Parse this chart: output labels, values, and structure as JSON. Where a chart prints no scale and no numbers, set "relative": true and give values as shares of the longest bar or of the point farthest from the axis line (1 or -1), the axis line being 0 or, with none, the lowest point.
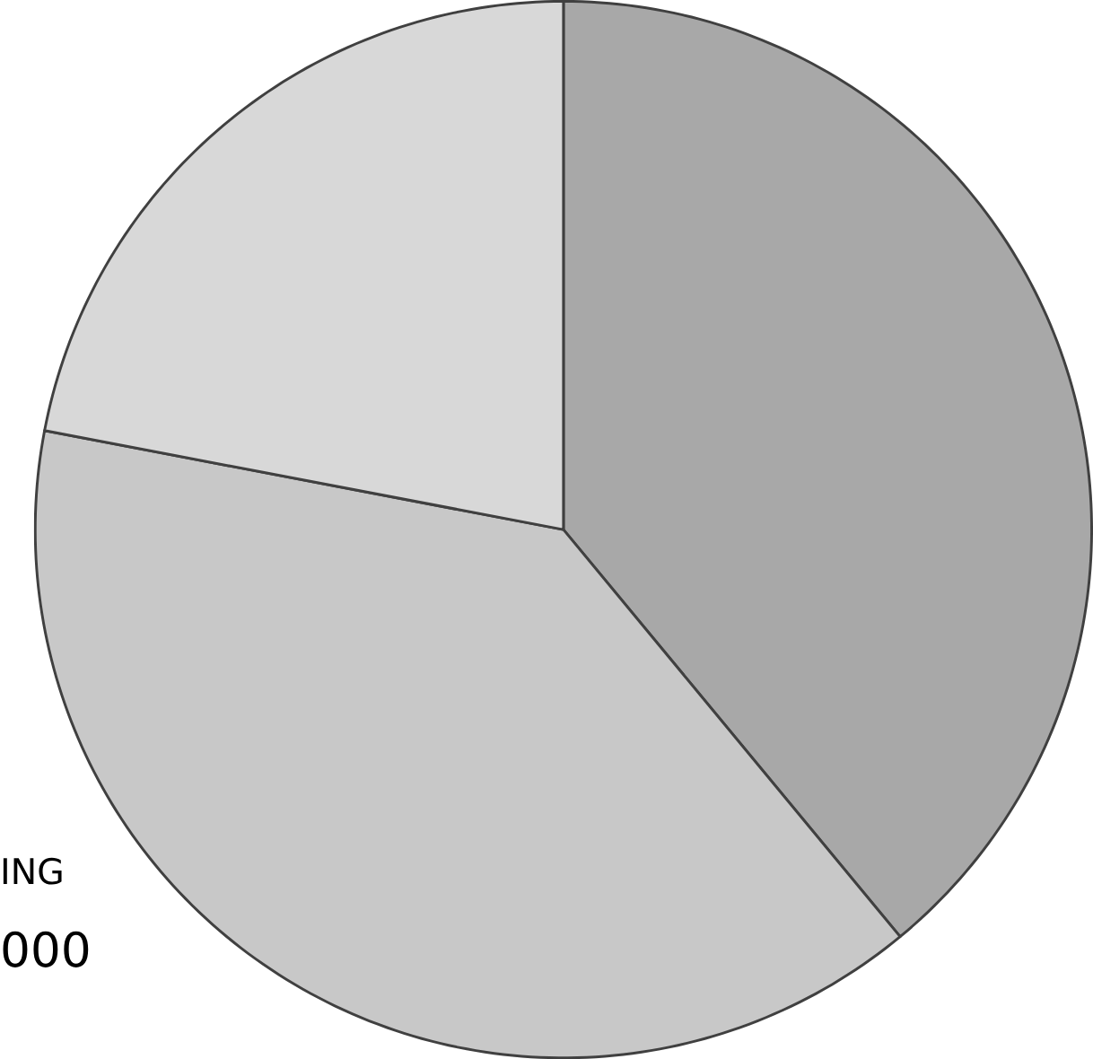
{
  "chart_data": {
    "type": "pie",
    "relative": true,
    "categories": [
      null,
      null,
      null
    ],
    "values": [
      39,
      39,
      22
    ],
    "colors": [
      "#a8a8a8",
      "#c8c8c8",
      "#d8d8d8"
    ],
    "annotations": [
      "ING",
      "000"
    ]
  }
}
